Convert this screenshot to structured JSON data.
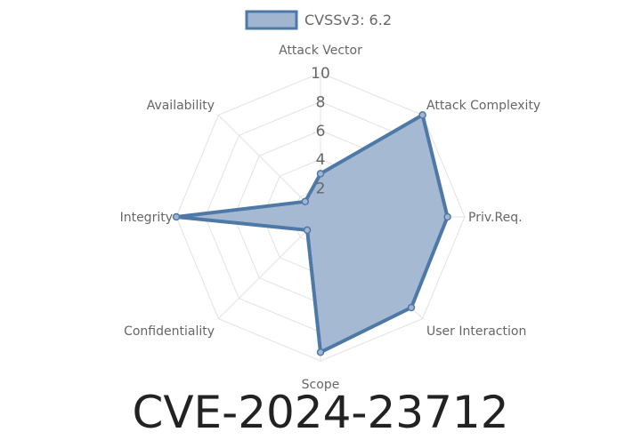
{
  "chart_data": {
    "type": "radar",
    "axes": [
      "Attack Vector",
      "Attack Complexity",
      "Priv.Req.",
      "User Interaction",
      "Scope",
      "Confidentiality",
      "Integrity",
      "Availability"
    ],
    "series": [
      {
        "name": "CVSSv3: 6.2",
        "values": [
          3,
          10,
          8.8,
          8.9,
          9.4,
          1.3,
          10,
          1.5
        ],
        "stroke": "#4e79a7",
        "fill": "#a1b5d1"
      }
    ],
    "rlim": [
      0,
      10
    ],
    "ticks": [
      "2",
      "4",
      "6",
      "8",
      "10"
    ],
    "tick_values": [
      2,
      4,
      6,
      8,
      10
    ],
    "legend_position": "top-center",
    "grid": true,
    "grid_color": "#e2e2e2"
  },
  "footer": {
    "title": "CVE-2024-23712"
  }
}
